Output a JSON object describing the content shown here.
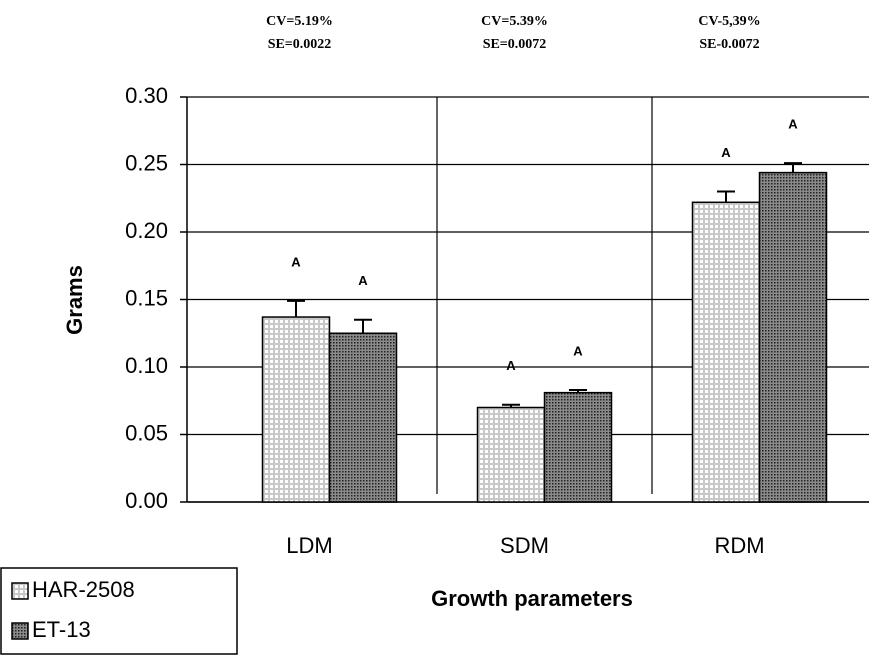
{
  "chart_data": {
    "type": "bar",
    "stats": [
      [
        "CV=5.19%",
        "SE=0.0022"
      ],
      [
        "CV=5.39%",
        "SE=0.0072"
      ],
      [
        "CV-5,39%",
        "SE-0.0072"
      ]
    ],
    "ylabel": "Grams",
    "xlabel": "Growth parameters",
    "categories": [
      "LDM",
      "SDM",
      "RDM"
    ],
    "series": [
      {
        "name": "HAR-2508",
        "color": "#c8c8c8",
        "values": [
          0.137,
          0.07,
          0.222
        ],
        "errors": [
          0.012,
          0.002,
          0.008
        ],
        "letters": [
          "A",
          "A",
          "A"
        ]
      },
      {
        "name": "ET-13",
        "color": "#8a8a8a",
        "values": [
          0.125,
          0.081,
          0.244
        ],
        "errors": [
          0.01,
          0.002,
          0.007
        ],
        "letters": [
          "A",
          "A",
          "A"
        ]
      }
    ],
    "ylim": [
      0,
      0.3
    ],
    "yticks": [
      {
        "value": 0,
        "label": "0.00"
      },
      {
        "value": 0.05,
        "label": "0.05"
      },
      {
        "value": 0.1,
        "label": "0.10"
      },
      {
        "value": 0.15,
        "label": "0.15"
      },
      {
        "value": 0.2,
        "label": "0.20"
      },
      {
        "value": 0.25,
        "label": "0.25"
      },
      {
        "value": 0.3,
        "label": "0.30"
      }
    ],
    "grid": true,
    "legend": "bottom-left"
  }
}
